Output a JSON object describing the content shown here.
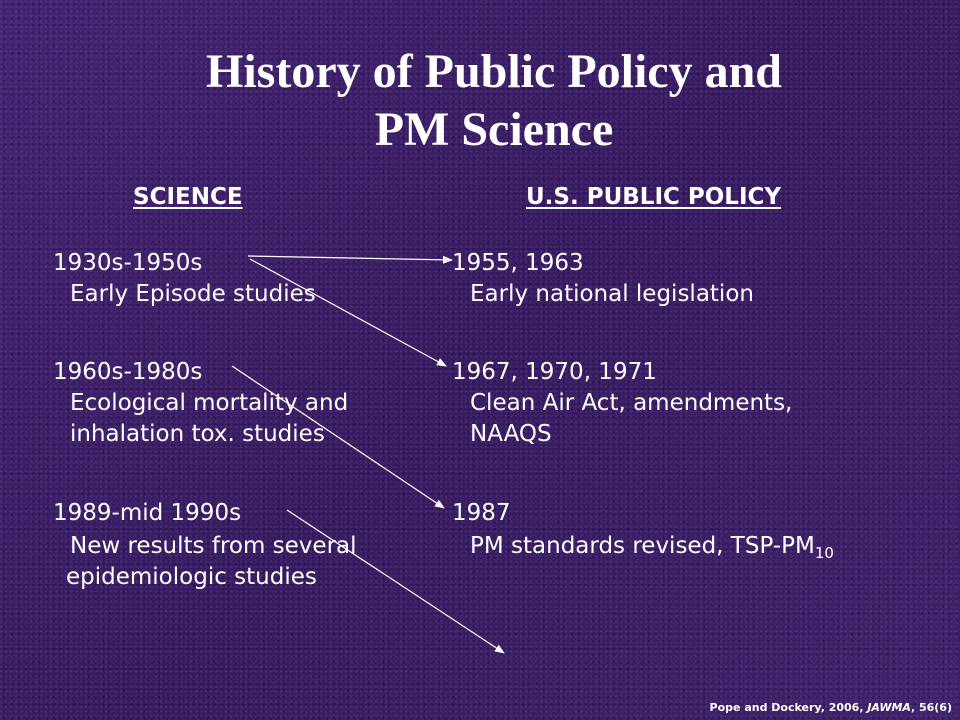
{
  "slide": {
    "title_line1": "History of Public Policy and",
    "title_line2": "PM Science",
    "science_header": "SCIENCE",
    "policy_header": "U.S. PUBLIC POLICY",
    "science": [
      {
        "period": "1930s-1950s",
        "lines": [
          "Early Episode studies"
        ]
      },
      {
        "period": "1960s-1980s",
        "lines": [
          "Ecological mortality and",
          "inhalation tox. studies"
        ]
      },
      {
        "period": "1989-mid 1990s",
        "lines": [
          "New results from several",
          "epidemiologic studies"
        ]
      }
    ],
    "policy": [
      {
        "years": "1955, 1963",
        "lines": [
          "Early national legislation"
        ]
      },
      {
        "years": "1967, 1970, 1971",
        "lines": [
          "Clean Air Act, amendments,",
          "NAAQS"
        ]
      },
      {
        "years": "1987",
        "line1_main": "PM standards revised, TSP-PM",
        "line1_sub": "10"
      }
    ],
    "citation": {
      "prefix": "Pope and Dockery, 2006, ",
      "journal": "JAWMA",
      "sep": ", ",
      "volume": "56",
      "issue": "(6)"
    },
    "arrow_color": "#ffffff"
  }
}
